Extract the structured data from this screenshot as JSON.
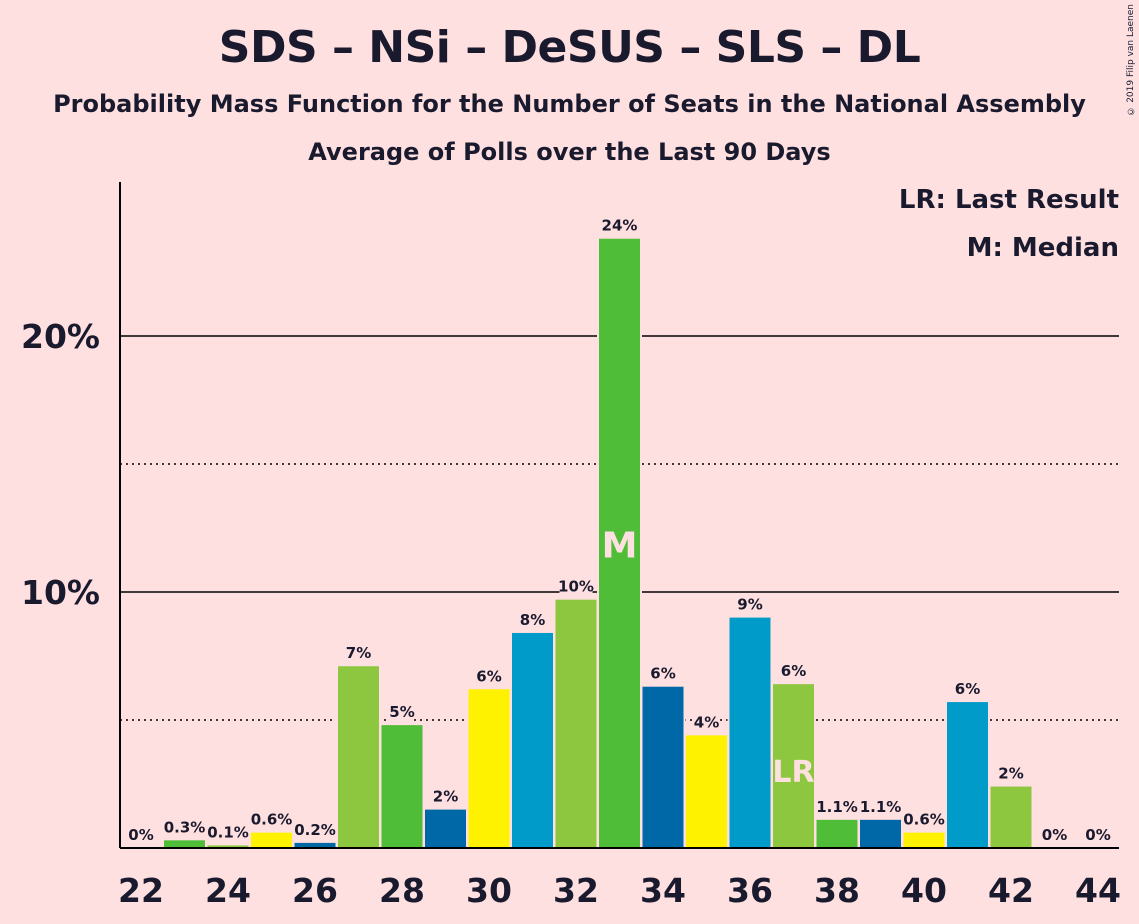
{
  "header": {
    "title": "SDS – NSi – DeSUS – SLS – DL",
    "subtitle1": "Probability Mass Function for the Number of Seats in the National Assembly",
    "subtitle2": "Average of Polls over the Last 90 Days",
    "copyright": "© 2019 Filip van Laenen"
  },
  "legend": {
    "lr": "LR: Last Result",
    "m": "M: Median"
  },
  "chart_data": {
    "type": "bar",
    "title": "SDS – NSi – DeSUS – SLS – DL",
    "xlabel": "",
    "ylabel": "",
    "ylim": [
      0,
      26
    ],
    "y_ticks": [
      {
        "value": 10,
        "label": "10%"
      },
      {
        "value": 20,
        "label": "20%"
      }
    ],
    "x_ticks": [
      "22",
      "24",
      "26",
      "28",
      "30",
      "32",
      "34",
      "36",
      "38",
      "40",
      "42",
      "44"
    ],
    "categories": [
      22,
      23,
      24,
      25,
      26,
      27,
      28,
      29,
      30,
      31,
      32,
      33,
      34,
      35,
      36,
      37,
      38,
      39,
      40,
      41,
      42,
      43,
      44
    ],
    "values": [
      0,
      0.3,
      0.1,
      0.6,
      0.2,
      7.1,
      4.8,
      1.5,
      6.2,
      8.4,
      9.7,
      23.8,
      6.3,
      4.4,
      9.0,
      6.4,
      1.1,
      1.1,
      0.6,
      5.7,
      2.4,
      0,
      0
    ],
    "labels": [
      "0%",
      "0.3%",
      "0.1%",
      "0.6%",
      "0.2%",
      "7%",
      "5%",
      "2%",
      "6%",
      "8%",
      "10%",
      "24%",
      "6%",
      "4%",
      "9%",
      "6%",
      "1.1%",
      "1.1%",
      "0.6%",
      "6%",
      "2%",
      "0%",
      "0%"
    ],
    "bar_colors": [
      "#4FBD38",
      "#4FBD38",
      "#8DC63F",
      "#FFF200",
      "#0068A6",
      "#8DC63F",
      "#4FBD38",
      "#0068A6",
      "#FFF200",
      "#009BC9",
      "#8DC63F",
      "#4FBD38",
      "#0068A6",
      "#FFF200",
      "#009BC9",
      "#8DC63F",
      "#4FBD38",
      "#0068A6",
      "#FFF200",
      "#009BC9",
      "#8DC63F",
      "#4FBD38",
      "#0068A6"
    ],
    "median_seat": 33,
    "median_marker": "M",
    "last_result_seat": 37,
    "last_result_marker": "LR",
    "gridlines": {
      "solid": [
        10,
        20
      ],
      "dotted": [
        5,
        15
      ]
    },
    "background": "#FFE0E0"
  }
}
